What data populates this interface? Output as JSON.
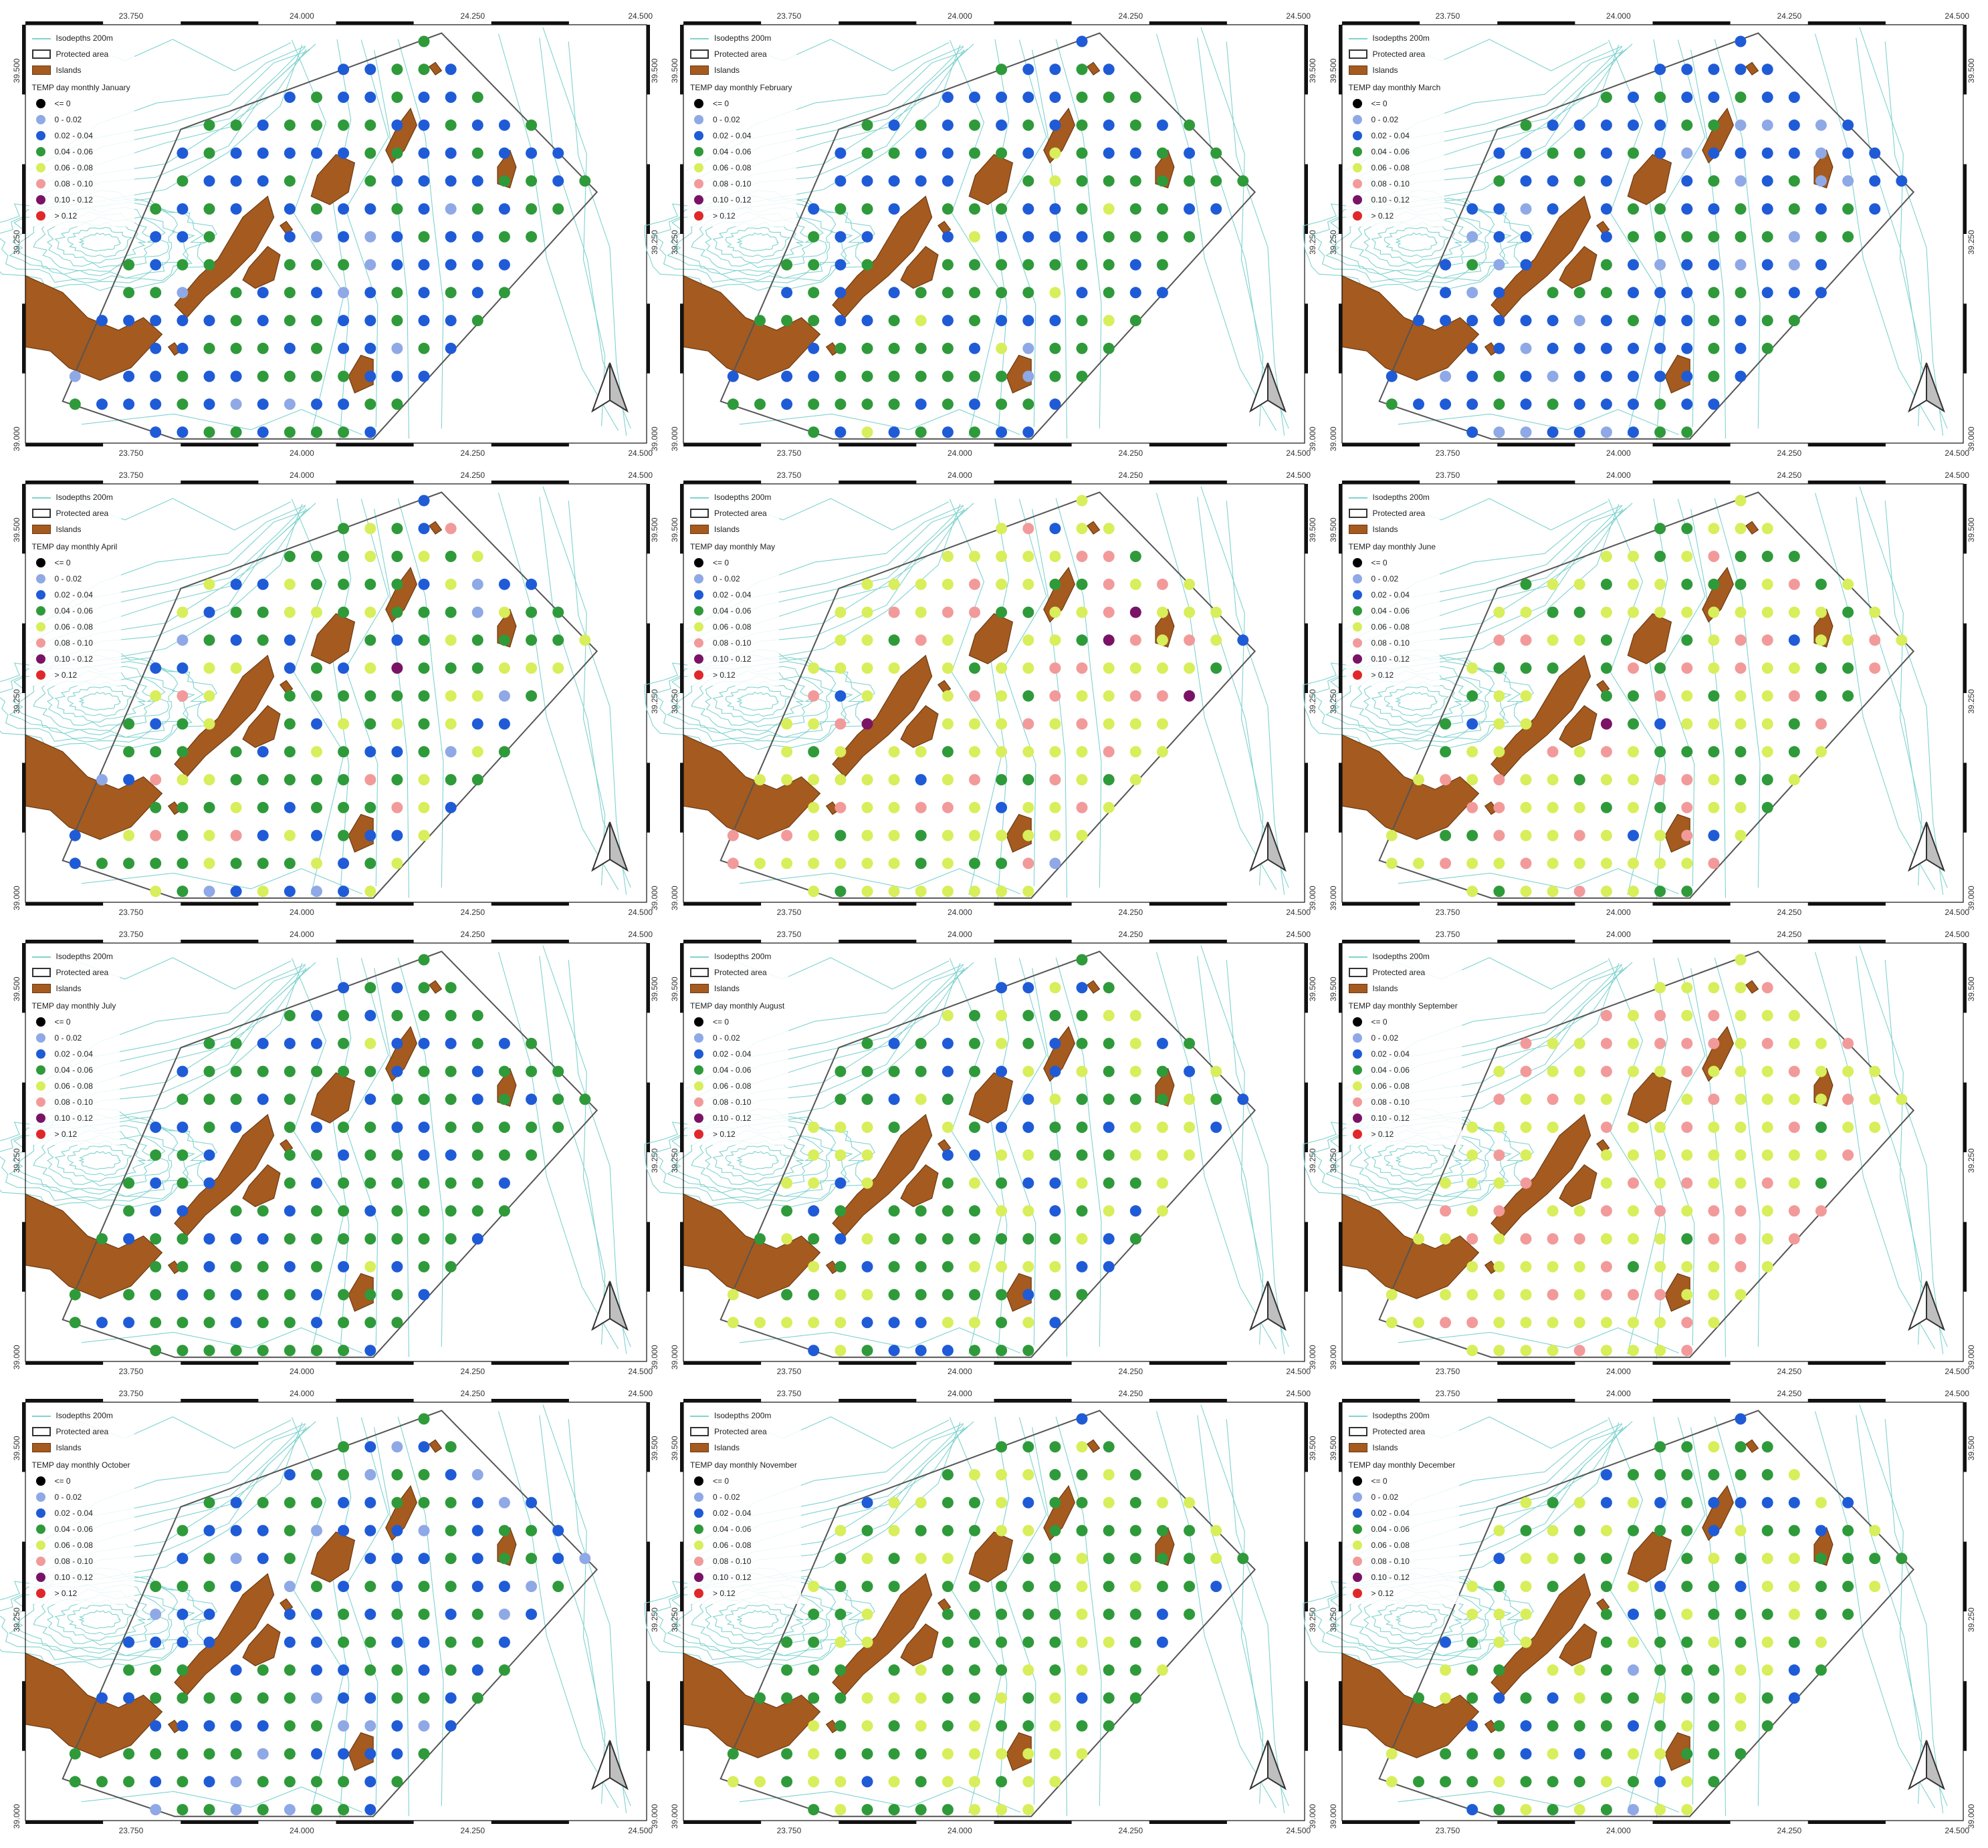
{
  "legend": {
    "isodepth_label": "Isodepths 200m",
    "protected_label": "Protected area",
    "islands_label": "Islands",
    "classes": [
      {
        "label": "<= 0",
        "color": "#000000"
      },
      {
        "label": "0 - 0.02",
        "color": "#8fa8e6"
      },
      {
        "label": "0.02 - 0.04",
        "color": "#1f5bd6"
      },
      {
        "label": "0.04 - 0.06",
        "color": "#2f9a3a"
      },
      {
        "label": "0.06 - 0.08",
        "color": "#d8ee5a"
      },
      {
        "label": "0.08 - 0.10",
        "color": "#f29a9a"
      },
      {
        "label": "0.10 - 0.12",
        "color": "#7a1366"
      },
      {
        "label": "> 0.12",
        "color": "#e0282a"
      }
    ]
  },
  "axes": {
    "x_ticks": [
      "23.750",
      "24.000",
      "24.250",
      "24.500"
    ],
    "y_ticks": [
      "39.000",
      "39.250",
      "39.500"
    ]
  },
  "colors": {
    "isodepth": "#7fd3cf",
    "island_fill": "#a55a1f",
    "island_stroke": "#6a3a12",
    "protected_stroke": "#555555",
    "frame": "#111111"
  },
  "panels": [
    {
      "title": "TEMP day monthly January",
      "dominant": [
        2,
        3
      ],
      "mix": [
        [
          2,
          0.55
        ],
        [
          3,
          0.4
        ],
        [
          1,
          0.05
        ]
      ]
    },
    {
      "title": "TEMP day monthly February",
      "dominant": [
        3,
        2
      ],
      "mix": [
        [
          3,
          0.55
        ],
        [
          2,
          0.38
        ],
        [
          4,
          0.05
        ],
        [
          1,
          0.02
        ]
      ]
    },
    {
      "title": "TEMP day monthly March",
      "dominant": [
        2,
        3
      ],
      "mix": [
        [
          2,
          0.55
        ],
        [
          3,
          0.35
        ],
        [
          1,
          0.1
        ]
      ]
    },
    {
      "title": "TEMP day monthly April",
      "dominant": [
        3,
        4
      ],
      "mix": [
        [
          3,
          0.42
        ],
        [
          2,
          0.22
        ],
        [
          4,
          0.26
        ],
        [
          5,
          0.06
        ],
        [
          1,
          0.03
        ],
        [
          6,
          0.01
        ]
      ]
    },
    {
      "title": "TEMP day monthly May",
      "dominant": [
        4,
        5
      ],
      "mix": [
        [
          4,
          0.6
        ],
        [
          5,
          0.22
        ],
        [
          3,
          0.12
        ],
        [
          6,
          0.03
        ],
        [
          2,
          0.02
        ],
        [
          1,
          0.01
        ]
      ]
    },
    {
      "title": "TEMP day monthly June",
      "dominant": [
        4,
        3
      ],
      "mix": [
        [
          4,
          0.5
        ],
        [
          3,
          0.28
        ],
        [
          5,
          0.16
        ],
        [
          2,
          0.04
        ],
        [
          1,
          0.01
        ],
        [
          6,
          0.01
        ]
      ]
    },
    {
      "title": "TEMP day monthly July",
      "dominant": [
        3,
        2
      ],
      "mix": [
        [
          3,
          0.62
        ],
        [
          2,
          0.36
        ],
        [
          4,
          0.02
        ]
      ]
    },
    {
      "title": "TEMP day monthly August",
      "dominant": [
        3,
        4
      ],
      "mix": [
        [
          3,
          0.48
        ],
        [
          4,
          0.3
        ],
        [
          2,
          0.22
        ]
      ]
    },
    {
      "title": "TEMP day monthly September",
      "dominant": [
        4,
        5
      ],
      "mix": [
        [
          4,
          0.7
        ],
        [
          5,
          0.28
        ],
        [
          3,
          0.02
        ]
      ]
    },
    {
      "title": "TEMP day monthly October",
      "dominant": [
        3,
        2
      ],
      "mix": [
        [
          3,
          0.5
        ],
        [
          2,
          0.38
        ],
        [
          1,
          0.12
        ]
      ]
    },
    {
      "title": "TEMP day monthly November",
      "dominant": [
        3,
        4
      ],
      "mix": [
        [
          3,
          0.58
        ],
        [
          4,
          0.34
        ],
        [
          2,
          0.08
        ]
      ]
    },
    {
      "title": "TEMP day monthly December",
      "dominant": [
        3,
        4
      ],
      "mix": [
        [
          3,
          0.55
        ],
        [
          4,
          0.3
        ],
        [
          2,
          0.13
        ],
        [
          1,
          0.02
        ]
      ]
    }
  ]
}
